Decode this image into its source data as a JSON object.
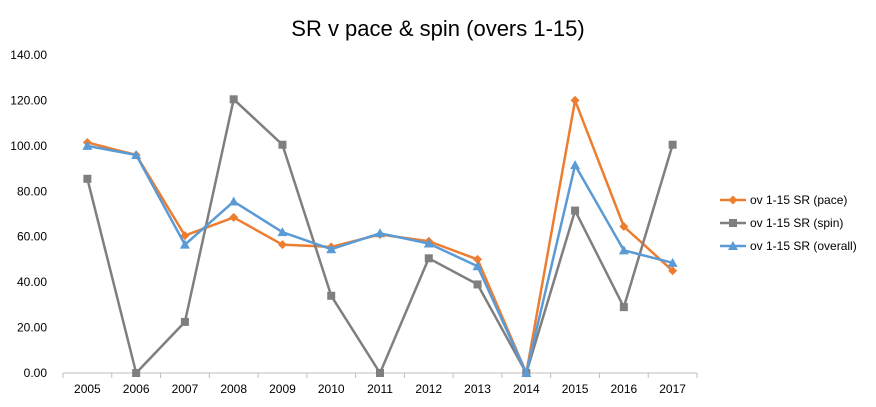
{
  "chart_data": {
    "type": "line",
    "title": "SR v pace & spin (overs 1-15)",
    "xlabel": "",
    "ylabel": "",
    "categories": [
      "2005",
      "2006",
      "2007",
      "2008",
      "2009",
      "2010",
      "2011",
      "2012",
      "2013",
      "2014",
      "2015",
      "2016",
      "2017"
    ],
    "ylim": [
      0,
      140
    ],
    "yticks": [
      "0.00",
      "20.00",
      "40.00",
      "60.00",
      "80.00",
      "100.00",
      "120.00",
      "140.00"
    ],
    "grid": false,
    "legend_position": "right",
    "series": [
      {
        "name": "ov 1-15 SR (pace)",
        "marker": "diamond",
        "color": "#ED7D31",
        "values": [
          101.5,
          96.0,
          60.5,
          68.5,
          56.5,
          55.5,
          61.0,
          58.0,
          50.0,
          0.0,
          120.0,
          64.5,
          45.0
        ]
      },
      {
        "name": "ov 1-15 SR (spin)",
        "marker": "square",
        "color": "#7F7F7F",
        "values": [
          85.5,
          0.0,
          22.5,
          120.5,
          100.5,
          34.0,
          0.0,
          50.5,
          39.0,
          0.0,
          71.5,
          29.0,
          100.5
        ]
      },
      {
        "name": "ov 1-15 SR (overall)",
        "marker": "triangle",
        "color": "#5B9BD5",
        "values": [
          100.0,
          96.0,
          56.5,
          75.5,
          62.0,
          54.5,
          61.5,
          57.0,
          47.0,
          0.0,
          91.5,
          54.0,
          48.5
        ]
      }
    ]
  }
}
